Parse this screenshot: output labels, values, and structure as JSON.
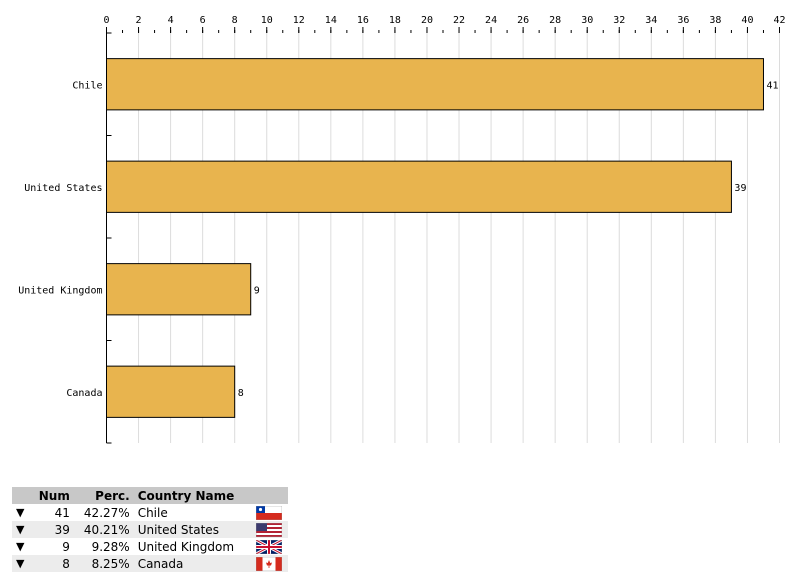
{
  "chart_data": {
    "type": "bar",
    "orientation": "horizontal",
    "categories": [
      "Chile",
      "United States",
      "United Kingdom",
      "Canada"
    ],
    "values": [
      41,
      39,
      9,
      8
    ],
    "xlim": [
      0,
      42
    ],
    "x_ticks": [
      0,
      2,
      4,
      6,
      8,
      10,
      12,
      14,
      16,
      18,
      20,
      22,
      24,
      26,
      28,
      30,
      32,
      34,
      36,
      38,
      40,
      42
    ],
    "x_axis_position": "top",
    "grid": "vertical",
    "bar_color": "#e8b44e",
    "data_labels": [
      "41",
      "39",
      "9",
      "8"
    ]
  },
  "table": {
    "headers": {
      "num": "Num",
      "perc": "Perc.",
      "name": "Country Name"
    },
    "header_bg": "#c8c8c8",
    "arrow_glyph": "▼",
    "rows": [
      {
        "num": "41",
        "perc": "42.27%",
        "name": "Chile",
        "flag": "chile-flag-icon"
      },
      {
        "num": "39",
        "perc": "40.21%",
        "name": "United States",
        "flag": "us-flag-icon"
      },
      {
        "num": "9",
        "perc": "9.28%",
        "name": "United Kingdom",
        "flag": "uk-flag-icon"
      },
      {
        "num": "8",
        "perc": "8.25%",
        "name": "Canada",
        "flag": "canada-flag-icon"
      }
    ]
  }
}
